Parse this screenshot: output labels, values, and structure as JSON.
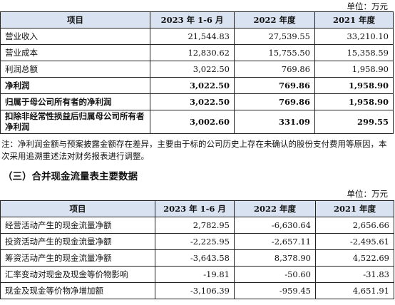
{
  "table1": {
    "unit": "单位：万元",
    "headers": [
      "项目",
      "2023 年 1-6 月",
      "2022 年度",
      "2021 年度"
    ],
    "rows": [
      {
        "label": "营业收入",
        "v1": "21,544.83",
        "v2": "27,539.55",
        "v3": "33,210.10",
        "bold": false
      },
      {
        "label": "营业成本",
        "v1": "12,830.62",
        "v2": "15,755.50",
        "v3": "15,358.59",
        "bold": false
      },
      {
        "label": "利润总额",
        "v1": "3,022.50",
        "v2": "769.86",
        "v3": "1,958.90",
        "bold": false
      },
      {
        "label": "净利润",
        "v1": "3,022.50",
        "v2": "769.86",
        "v3": "1,958.90",
        "bold": true
      },
      {
        "label": "归属于母公司所有者的净利润",
        "v1": "3,022.50",
        "v2": "769.86",
        "v3": "1,958.90",
        "bold": true
      },
      {
        "label": "扣除非经常性损益后归属母公司所有者净利润",
        "v1": "3,002.60",
        "v2": "331.09",
        "v3": "299.55",
        "bold": true
      }
    ]
  },
  "note": "注：净利润金额与预案披露金额存在差异，主要由于标的公司历史上存在未确认的股份支付费用等原因，本次采用追溯重述法对财务报表进行调整。",
  "section_title": "（三）合并现金流量表主要数据",
  "table2": {
    "unit": "单位：万元",
    "headers": [
      "项目",
      "2023 年 1-6 月",
      "2022 年度",
      "2021 年度"
    ],
    "rows": [
      {
        "label": "经营活动产生的现金流量净额",
        "v1": "2,782.95",
        "v2": "-6,630.64",
        "v3": "2,656.66"
      },
      {
        "label": "投资活动产生的现金流量净额",
        "v1": "-2,225.95",
        "v2": "-2,657.11",
        "v3": "-2,495.61"
      },
      {
        "label": "筹资活动产生的现金流量净额",
        "v1": "-3,643.58",
        "v2": "8,378.90",
        "v3": "4,522.69"
      },
      {
        "label": "汇率变动对现金及现金等价物影响",
        "v1": "-19.81",
        "v2": "-50.60",
        "v3": "-31.83"
      },
      {
        "label": "现金及现金等价物净增加额",
        "v1": "-3,106.39",
        "v2": "-959.45",
        "v3": "4,651.91"
      }
    ]
  }
}
